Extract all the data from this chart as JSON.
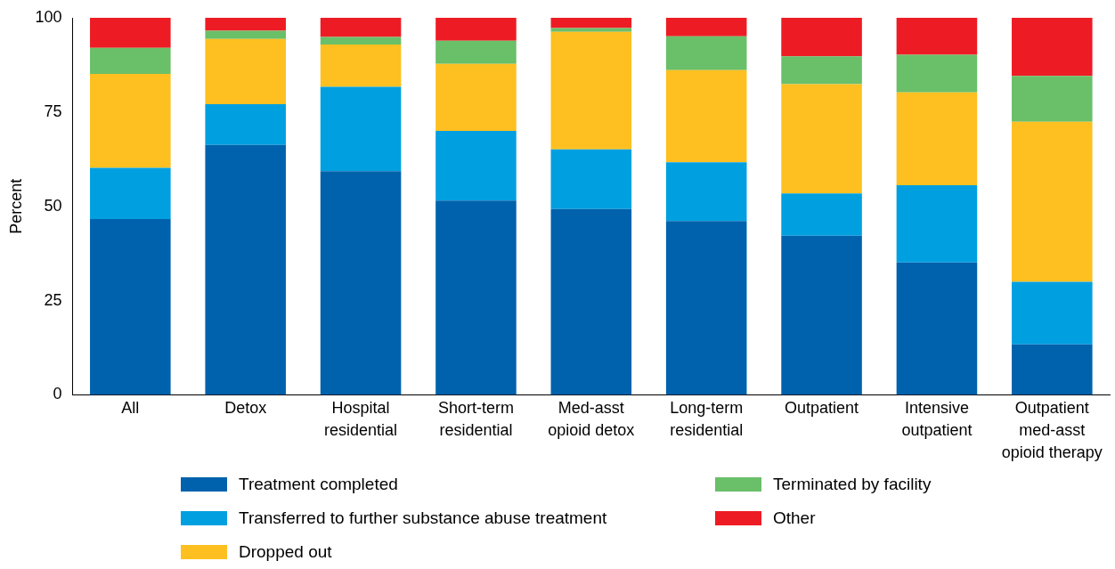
{
  "chart_data": {
    "type": "bar",
    "stacked": true,
    "ylabel": "Percent",
    "ylim": [
      0,
      100
    ],
    "yticks": [
      0,
      25,
      50,
      75,
      100
    ],
    "grid": false,
    "legend": "bottom",
    "categories": [
      "All",
      "Detox",
      "Hospital residential",
      "Short-term residential",
      "Med-asst opioid detox",
      "Long-term residential",
      "Outpatient",
      "Intensive outpatient",
      "Outpatient med-asst opioid therapy"
    ],
    "series": [
      {
        "name": "Treatment completed",
        "color": "#0062ad",
        "values": [
          46.6,
          66.3,
          59.3,
          51.5,
          49.3,
          46.1,
          42.2,
          35.1,
          13.4
        ]
      },
      {
        "name": "Transferred to further substance abuse treatment",
        "color": "#00a0e0",
        "values": [
          13.6,
          10.8,
          22.4,
          18.5,
          15.8,
          15.6,
          11.2,
          20.5,
          16.6
        ]
      },
      {
        "name": "Dropped out",
        "color": "#fdc020",
        "values": [
          24.9,
          17.3,
          11.2,
          17.8,
          31.2,
          24.4,
          29.0,
          24.6,
          42.4
        ]
      },
      {
        "name": "Terminated by facility",
        "color": "#6abf69",
        "values": [
          6.9,
          2.2,
          2.0,
          6.1,
          1.0,
          9.0,
          7.4,
          10.0,
          12.2
        ]
      },
      {
        "name": "Other",
        "color": "#ed1c24",
        "values": [
          8.0,
          3.4,
          5.1,
          6.1,
          2.7,
          4.9,
          10.2,
          9.8,
          15.4
        ]
      }
    ]
  }
}
